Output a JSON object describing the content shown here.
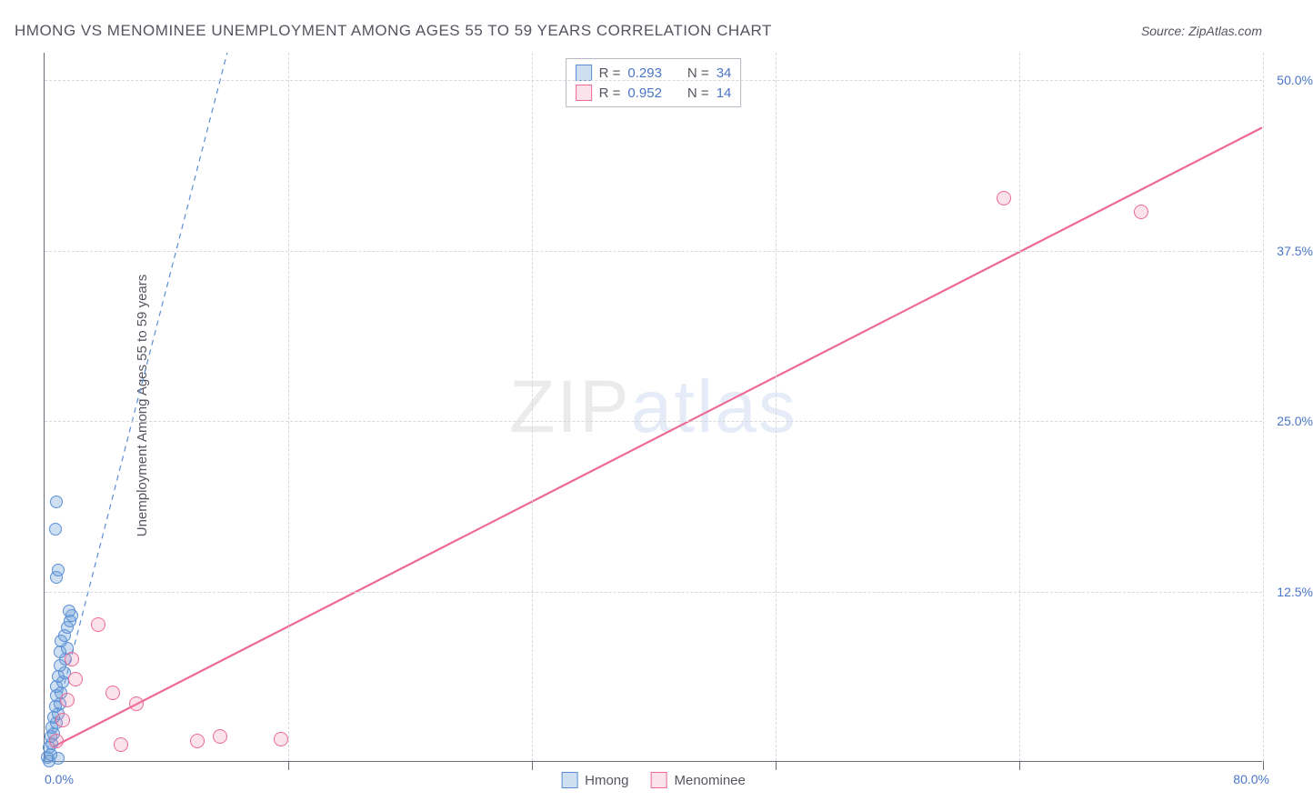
{
  "title": "HMONG VS MENOMINEE UNEMPLOYMENT AMONG AGES 55 TO 59 YEARS CORRELATION CHART",
  "source": "Source: ZipAtlas.com",
  "ylabel": "Unemployment Among Ages 55 to 59 years",
  "watermark_a": "ZIP",
  "watermark_b": "atlas",
  "chart": {
    "type": "scatter",
    "xlim": [
      0,
      80
    ],
    "ylim": [
      0,
      52
    ],
    "x_tick_labels": {
      "left": "0.0%",
      "right": "80.0%"
    },
    "y_tick_labels": [
      "12.5%",
      "25.0%",
      "37.5%",
      "50.0%"
    ],
    "y_tick_values": [
      12.5,
      25.0,
      37.5,
      50.0
    ],
    "x_grid_values": [
      16,
      32,
      48,
      64,
      80
    ],
    "background_color": "#ffffff",
    "grid_color": "#d7d7de",
    "axis_color": "#6c6c78",
    "text_color": "#555560",
    "value_color": "#4a76c7",
    "title_fontsize": 17,
    "label_fontsize": 15,
    "tick_fontsize": 14,
    "series": [
      {
        "name": "Hmong",
        "color_fill": "rgba(116,162,217,0.35)",
        "color_stroke": "#5a8fd6",
        "marker_radius": 7,
        "R": "0.293",
        "N": "34",
        "trend": {
          "style": "dashed",
          "width": 1.2,
          "x1": 0,
          "y1": 0,
          "x2": 12,
          "y2": 52
        },
        "points": [
          {
            "x": 0.2,
            "y": 0.3
          },
          {
            "x": 0.4,
            "y": 0.5
          },
          {
            "x": 0.3,
            "y": 1.0
          },
          {
            "x": 0.5,
            "y": 1.3
          },
          {
            "x": 0.4,
            "y": 1.8
          },
          {
            "x": 0.6,
            "y": 2.0
          },
          {
            "x": 0.5,
            "y": 2.5
          },
          {
            "x": 0.8,
            "y": 2.8
          },
          {
            "x": 0.6,
            "y": 3.2
          },
          {
            "x": 0.9,
            "y": 3.5
          },
          {
            "x": 0.7,
            "y": 4.0
          },
          {
            "x": 1.0,
            "y": 4.2
          },
          {
            "x": 0.8,
            "y": 4.8
          },
          {
            "x": 1.1,
            "y": 5.0
          },
          {
            "x": 0.8,
            "y": 5.5
          },
          {
            "x": 1.2,
            "y": 5.8
          },
          {
            "x": 0.9,
            "y": 6.2
          },
          {
            "x": 1.3,
            "y": 6.5
          },
          {
            "x": 1.0,
            "y": 7.0
          },
          {
            "x": 1.4,
            "y": 7.5
          },
          {
            "x": 1.0,
            "y": 8.0
          },
          {
            "x": 1.5,
            "y": 8.3
          },
          {
            "x": 1.1,
            "y": 8.8
          },
          {
            "x": 1.3,
            "y": 9.2
          },
          {
            "x": 1.5,
            "y": 9.8
          },
          {
            "x": 1.7,
            "y": 10.3
          },
          {
            "x": 1.8,
            "y": 10.7
          },
          {
            "x": 1.6,
            "y": 11.0
          },
          {
            "x": 0.8,
            "y": 13.5
          },
          {
            "x": 0.9,
            "y": 14.0
          },
          {
            "x": 0.7,
            "y": 17.0
          },
          {
            "x": 0.8,
            "y": 19.0
          },
          {
            "x": 0.3,
            "y": 0.0
          },
          {
            "x": 0.9,
            "y": 0.2
          }
        ]
      },
      {
        "name": "Menominee",
        "color_fill": "rgba(243,141,170,0.25)",
        "color_stroke": "#ec6a94",
        "marker_radius": 8,
        "R": "0.952",
        "N": "14",
        "trend": {
          "style": "solid",
          "width": 2.2,
          "x1": 0.5,
          "y1": 1.0,
          "x2": 80,
          "y2": 46.5
        },
        "points": [
          {
            "x": 0.8,
            "y": 1.5
          },
          {
            "x": 1.2,
            "y": 3.0
          },
          {
            "x": 1.5,
            "y": 4.5
          },
          {
            "x": 2.0,
            "y": 6.0
          },
          {
            "x": 1.8,
            "y": 7.5
          },
          {
            "x": 3.5,
            "y": 10.0
          },
          {
            "x": 4.5,
            "y": 5.0
          },
          {
            "x": 6.0,
            "y": 4.2
          },
          {
            "x": 5.0,
            "y": 1.2
          },
          {
            "x": 10.0,
            "y": 1.5
          },
          {
            "x": 11.5,
            "y": 1.8
          },
          {
            "x": 15.5,
            "y": 1.6
          },
          {
            "x": 63.0,
            "y": 41.3
          },
          {
            "x": 72.0,
            "y": 40.3
          }
        ]
      }
    ],
    "legend_bottom": [
      {
        "swatch": "blue",
        "label": "Hmong"
      },
      {
        "swatch": "pink",
        "label": "Menominee"
      }
    ],
    "legend_top_rows": [
      {
        "swatch": "blue",
        "r_label": "R =",
        "r_value": "0.293",
        "n_label": "N =",
        "n_value": "34"
      },
      {
        "swatch": "pink",
        "r_label": "R =",
        "r_value": "0.952",
        "n_label": "N =",
        "n_value": "14"
      }
    ]
  }
}
